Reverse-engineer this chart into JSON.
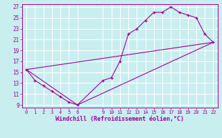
{
  "xlabel": "Windchill (Refroidissement éolien,°C)",
  "bg_color": "#c8eef0",
  "grid_color": "#ffffff",
  "line_color": "#990099",
  "xlim": [
    -0.5,
    22.5
  ],
  "ylim": [
    8.5,
    27.5
  ],
  "xticks": [
    0,
    1,
    2,
    3,
    4,
    5,
    6,
    9,
    10,
    11,
    12,
    13,
    14,
    15,
    16,
    17,
    18,
    19,
    20,
    21,
    22
  ],
  "yticks": [
    9,
    11,
    13,
    15,
    17,
    19,
    21,
    23,
    25,
    27
  ],
  "main_points": [
    [
      0,
      15.5
    ],
    [
      1,
      13.5
    ],
    [
      2,
      12.5
    ],
    [
      3,
      11.5
    ],
    [
      4,
      10.5
    ],
    [
      5,
      9.5
    ],
    [
      6,
      9.0
    ],
    [
      9,
      13.5
    ],
    [
      10,
      14.0
    ],
    [
      11,
      17.0
    ],
    [
      12,
      22.0
    ],
    [
      13,
      23.0
    ],
    [
      14,
      24.5
    ],
    [
      15,
      26.0
    ],
    [
      16,
      26.0
    ],
    [
      17,
      27.0
    ],
    [
      18,
      26.0
    ],
    [
      19,
      25.5
    ],
    [
      20,
      25.0
    ],
    [
      21,
      22.0
    ],
    [
      22,
      20.5
    ]
  ],
  "straight_line1": [
    [
      0,
      15.5
    ],
    [
      22,
      20.5
    ]
  ],
  "straight_line2": [
    [
      0,
      15.5
    ],
    [
      6,
      9.0
    ],
    [
      22,
      20.5
    ]
  ]
}
